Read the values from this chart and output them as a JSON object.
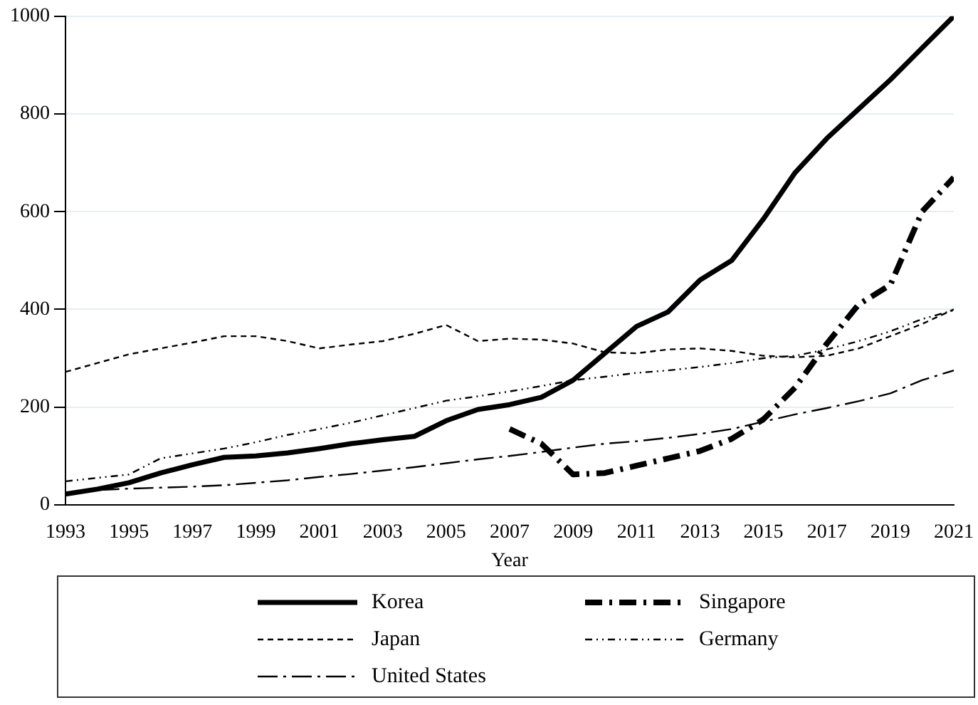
{
  "chart_data": {
    "type": "line",
    "xlabel": "Year",
    "x": [
      1993,
      1994,
      1995,
      1996,
      1997,
      1998,
      1999,
      2000,
      2001,
      2002,
      2003,
      2004,
      2005,
      2006,
      2007,
      2008,
      2009,
      2010,
      2011,
      2012,
      2013,
      2014,
      2015,
      2016,
      2017,
      2018,
      2019,
      2020,
      2021
    ],
    "xlim": [
      1993,
      2021
    ],
    "xticks": [
      1993,
      1995,
      1997,
      1999,
      2001,
      2003,
      2005,
      2007,
      2009,
      2011,
      2013,
      2015,
      2017,
      2019,
      2021
    ],
    "ylim": [
      0,
      1000
    ],
    "yticks": [
      0,
      200,
      400,
      600,
      800,
      1000
    ],
    "grid": "y",
    "legend": "bottom",
    "marker": "none",
    "series": [
      {
        "name": "Korea",
        "color": "#000000",
        "line_style": "solid",
        "values": [
          22,
          32,
          45,
          65,
          82,
          97,
          100,
          106,
          115,
          125,
          133,
          140,
          172,
          195,
          205,
          220,
          255,
          310,
          365,
          395,
          460,
          500,
          585,
          680,
          750,
          810,
          870,
          935,
          1000
        ]
      },
      {
        "name": "Singapore",
        "color": "#000000",
        "line_style": "dashdot",
        "values": [
          null,
          null,
          null,
          null,
          null,
          null,
          null,
          null,
          null,
          null,
          null,
          null,
          null,
          null,
          155,
          125,
          62,
          65,
          80,
          95,
          110,
          135,
          175,
          240,
          330,
          410,
          450,
          600,
          670
        ]
      },
      {
        "name": "Japan",
        "color": "#000000",
        "line_style": "dashed",
        "values": [
          272,
          290,
          308,
          320,
          332,
          345,
          345,
          335,
          320,
          328,
          335,
          350,
          368,
          335,
          340,
          338,
          330,
          312,
          310,
          318,
          320,
          315,
          305,
          302,
          305,
          320,
          345,
          370,
          400
        ]
      },
      {
        "name": "Germany",
        "color": "#000000",
        "line_style": "dashdotdot",
        "values": [
          48,
          55,
          62,
          95,
          105,
          115,
          128,
          143,
          155,
          168,
          183,
          198,
          213,
          222,
          232,
          243,
          255,
          262,
          270,
          275,
          282,
          290,
          300,
          305,
          318,
          335,
          355,
          380,
          398
        ]
      },
      {
        "name": "United States",
        "color": "#000000",
        "line_style": "longdashdot",
        "values": [
          22,
          30,
          33,
          35,
          37,
          40,
          45,
          50,
          57,
          63,
          70,
          77,
          85,
          93,
          100,
          108,
          117,
          125,
          130,
          137,
          145,
          155,
          170,
          185,
          198,
          212,
          228,
          255,
          275
        ]
      }
    ]
  }
}
